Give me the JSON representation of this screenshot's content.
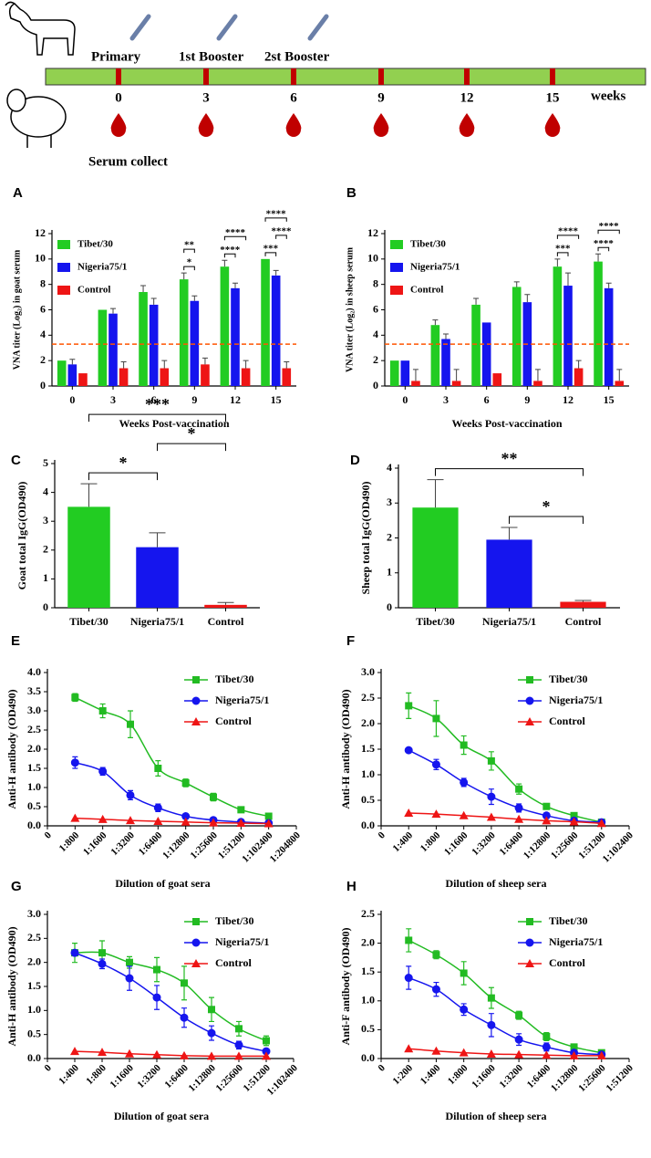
{
  "timeline": {
    "vaccinations": [
      "Primary",
      "1st Booster",
      "2st Booster"
    ],
    "weeks": [
      "0",
      "3",
      "6",
      "9",
      "12",
      "15"
    ],
    "unit": "weeks",
    "serum": "Serum collect"
  },
  "chart_data": [
    {
      "type": "bar",
      "panel": "A",
      "xlabel": "Weeks Post-vaccination",
      "ylabel": "VNA titer (Log₂) in goat serum",
      "categories": [
        "0",
        "3",
        "6",
        "9",
        "12",
        "15"
      ],
      "series": [
        {
          "name": "Tibet/30",
          "color": "#22cc22",
          "values": [
            2.0,
            6.0,
            7.4,
            8.4,
            9.4,
            10.0
          ],
          "errors": [
            0,
            0,
            0.5,
            0.5,
            0.5,
            0
          ]
        },
        {
          "name": "Nigeria75/1",
          "color": "#1515ee",
          "values": [
            1.7,
            5.7,
            6.4,
            6.7,
            7.7,
            8.7
          ],
          "errors": [
            0.4,
            0.4,
            0.5,
            0.4,
            0.4,
            0.4
          ]
        },
        {
          "name": "Control",
          "color": "#ee1515",
          "values": [
            1.0,
            1.4,
            1.4,
            1.7,
            1.4,
            1.4
          ],
          "errors": [
            0,
            0.5,
            0.6,
            0.5,
            0.6,
            0.5
          ]
        }
      ],
      "threshold": 3.3,
      "threshold_color": "#ff5500",
      "ylim": [
        0,
        12
      ],
      "yticks": [
        0,
        2,
        4,
        6,
        8,
        10,
        12
      ],
      "annotations": [
        {
          "text": "*",
          "category": "9",
          "bars": [
            "Tibet/30",
            "Nigeria75/1"
          ]
        },
        {
          "text": "**",
          "category": "9",
          "bars": [
            "Tibet/30",
            "Nigeria75/1"
          ]
        },
        {
          "text": "****",
          "category": "12",
          "bars": [
            "Tibet/30",
            "Nigeria75/1"
          ]
        },
        {
          "text": "****",
          "category": "12",
          "bars": [
            "Tibet/30",
            "Control"
          ]
        },
        {
          "text": "***",
          "category": "15",
          "bars": [
            "Tibet/30",
            "Nigeria75/1"
          ]
        },
        {
          "text": "****",
          "category": "15",
          "bars": [
            "Nigeria75/1",
            "Control"
          ]
        },
        {
          "text": "****",
          "category": "15",
          "bars": [
            "Tibet/30",
            "Control"
          ]
        }
      ]
    },
    {
      "type": "bar",
      "panel": "B",
      "xlabel": "Weeks Post-vaccination",
      "ylabel": "VNA titer (Log₂) in sheep serum",
      "categories": [
        "0",
        "3",
        "6",
        "9",
        "12",
        "15"
      ],
      "series": [
        {
          "name": "Tibet/30",
          "color": "#22cc22",
          "values": [
            2.0,
            4.8,
            6.4,
            7.8,
            9.4,
            9.8
          ],
          "errors": [
            0,
            0.4,
            0.5,
            0.4,
            0.6,
            0.6
          ]
        },
        {
          "name": "Nigeria75/1",
          "color": "#1515ee",
          "values": [
            2.0,
            3.7,
            5.0,
            6.6,
            7.9,
            7.7
          ],
          "errors": [
            0,
            0.4,
            0,
            0.6,
            1.0,
            0.4
          ]
        },
        {
          "name": "Control",
          "color": "#ee1515",
          "values": [
            0.4,
            0.4,
            1.0,
            0.4,
            1.4,
            0.4
          ],
          "errors": [
            0.9,
            0.9,
            0,
            0.9,
            0.6,
            0.9
          ]
        }
      ],
      "threshold": 3.3,
      "threshold_color": "#ff5500",
      "ylim": [
        0,
        12
      ],
      "yticks": [
        0,
        2,
        4,
        6,
        8,
        10,
        12
      ],
      "annotations": [
        {
          "text": "***",
          "category": "12",
          "bars": [
            "Tibet/30",
            "Nigeria75/1"
          ]
        },
        {
          "text": "****",
          "category": "12",
          "bars": [
            "Tibet/30",
            "Control"
          ]
        },
        {
          "text": "****",
          "category": "15",
          "bars": [
            "Tibet/30",
            "Nigeria75/1"
          ]
        },
        {
          "text": "****",
          "category": "15",
          "bars": [
            "Tibet/30",
            "Control"
          ]
        }
      ]
    },
    {
      "type": "bar",
      "panel": "C",
      "ylabel": "Goat total IgG(OD490)",
      "categories": [
        "Tibet/30",
        "Nigeria75/1",
        "Control"
      ],
      "values": [
        3.5,
        2.1,
        0.1
      ],
      "errors": [
        0.8,
        0.5,
        0.08
      ],
      "colors": [
        "#22cc22",
        "#1515ee",
        "#ee1515"
      ],
      "ylim": [
        0,
        5
      ],
      "yticks": [
        0,
        1,
        2,
        3,
        4,
        5
      ],
      "annotations": [
        {
          "text": "*",
          "bars": [
            "Tibet/30",
            "Nigeria75/1"
          ]
        },
        {
          "text": "*",
          "bars": [
            "Nigeria75/1",
            "Control"
          ]
        },
        {
          "text": "***",
          "bars": [
            "Tibet/30",
            "Control"
          ]
        }
      ]
    },
    {
      "type": "bar",
      "panel": "D",
      "ylabel": "Sheep total IgG(OD490)",
      "categories": [
        "Tibet/30",
        "Nigeria75/1",
        "Control"
      ],
      "values": [
        2.87,
        1.95,
        0.17
      ],
      "errors": [
        0.8,
        0.35,
        0.04
      ],
      "colors": [
        "#22cc22",
        "#1515ee",
        "#ee1515"
      ],
      "ylim": [
        0,
        4
      ],
      "yticks": [
        0,
        1,
        2,
        3,
        4
      ],
      "annotations": [
        {
          "text": "*",
          "bars": [
            "Nigeria75/1",
            "Control"
          ]
        },
        {
          "text": "**",
          "bars": [
            "Tibet/30",
            "Control"
          ]
        }
      ]
    },
    {
      "type": "line",
      "panel": "E",
      "xlabel": "Dilution of goat sera",
      "ylabel": "Anti-H antibody (OD490)",
      "categories": [
        "0",
        "1:800",
        "1:1600",
        "1:3200",
        "1:6400",
        "1:12800",
        "1:25600",
        "1:51200",
        "1:102400",
        "1:204800"
      ],
      "series": [
        {
          "name": "Tibet/30",
          "color": "#22bb22",
          "marker": "square",
          "values": [
            null,
            3.35,
            3.0,
            2.65,
            1.5,
            1.12,
            0.75,
            0.42,
            0.25,
            null
          ],
          "errors": [
            null,
            0.1,
            0.18,
            0.35,
            0.2,
            0.1,
            0.1,
            0.05,
            0.05,
            null
          ]
        },
        {
          "name": "Nigeria75/1",
          "color": "#1515ee",
          "marker": "circle",
          "values": [
            null,
            1.65,
            1.42,
            0.8,
            0.47,
            0.25,
            0.15,
            0.1,
            0.07,
            null
          ],
          "errors": [
            null,
            0.15,
            0.1,
            0.12,
            0.1,
            0.03,
            0.03,
            0.02,
            0.02,
            null
          ]
        },
        {
          "name": "Control",
          "color": "#ee1515",
          "marker": "triangle",
          "values": [
            null,
            0.2,
            0.17,
            0.14,
            0.12,
            0.1,
            0.08,
            0.07,
            0.06,
            null
          ]
        }
      ],
      "ylim": [
        0,
        4
      ],
      "yticks": [
        {
          "value": 0,
          "label": "0.0"
        },
        0.5,
        {
          "value": 1,
          "label": "1.0"
        },
        1.5,
        {
          "value": 2,
          "label": "2.0"
        },
        2.5,
        {
          "value": 3,
          "label": "3.0"
        },
        3.5,
        {
          "value": 4,
          "label": "4.0"
        }
      ]
    },
    {
      "type": "line",
      "panel": "F",
      "xlabel": "Dilution of sheep sera",
      "ylabel": "Anti-H antibody (OD490)",
      "categories": [
        "0",
        "1:400",
        "1:800",
        "1:1600",
        "1:3200",
        "1:6400",
        "1:12800",
        "1:25600",
        "1:51200",
        "1:102400"
      ],
      "series": [
        {
          "name": "Tibet/30",
          "color": "#22bb22",
          "marker": "square",
          "values": [
            null,
            2.35,
            2.1,
            1.58,
            1.27,
            0.72,
            0.38,
            0.2,
            0.07,
            null
          ],
          "errors": [
            null,
            0.25,
            0.35,
            0.18,
            0.18,
            0.1,
            0.05,
            0.05,
            0.02,
            null
          ]
        },
        {
          "name": "Nigeria75/1",
          "color": "#1515ee",
          "marker": "circle",
          "values": [
            null,
            1.48,
            1.2,
            0.85,
            0.57,
            0.35,
            0.2,
            0.1,
            0.07,
            null
          ],
          "errors": [
            null,
            0,
            0.1,
            0.08,
            0.15,
            0.08,
            0.05,
            0.02,
            0.02,
            null
          ]
        },
        {
          "name": "Control",
          "color": "#ee1515",
          "marker": "triangle",
          "values": [
            null,
            0.25,
            0.23,
            0.2,
            0.17,
            0.13,
            0.1,
            0.08,
            0.05,
            null
          ]
        }
      ],
      "ylim": [
        0,
        3
      ],
      "yticks": [
        {
          "value": 0,
          "label": "0.0"
        },
        0.5,
        {
          "value": 1,
          "label": "1.0"
        },
        1.5,
        {
          "value": 2,
          "label": "2.0"
        },
        2.5,
        {
          "value": 3,
          "label": "3.0"
        }
      ]
    },
    {
      "type": "line",
      "panel": "G",
      "xlabel": "Dilution of goat sera",
      "ylabel": "Anti-H antibody (OD490)",
      "categories": [
        "0",
        "1:400",
        "1:800",
        "1:1600",
        "1:3200",
        "1:6400",
        "1:12800",
        "1:25600",
        "1:51200",
        "1:102400"
      ],
      "series": [
        {
          "name": "Tibet/30",
          "color": "#22bb22",
          "marker": "square",
          "values": [
            null,
            2.2,
            2.2,
            2.0,
            1.85,
            1.57,
            1.02,
            0.62,
            0.37,
            null
          ],
          "errors": [
            null,
            0.2,
            0.25,
            0.12,
            0.25,
            0.35,
            0.25,
            0.15,
            0.1,
            null
          ]
        },
        {
          "name": "Nigeria75/1",
          "color": "#1515ee",
          "marker": "circle",
          "values": [
            null,
            2.2,
            1.97,
            1.67,
            1.27,
            0.85,
            0.53,
            0.28,
            0.15,
            null
          ],
          "errors": [
            null,
            0.05,
            0.1,
            0.25,
            0.25,
            0.2,
            0.15,
            0.08,
            0.05,
            null
          ]
        },
        {
          "name": "Control",
          "color": "#ee1515",
          "marker": "triangle",
          "values": [
            null,
            0.15,
            0.13,
            0.1,
            0.08,
            0.06,
            0.05,
            0.05,
            0.05,
            null
          ]
        }
      ],
      "ylim": [
        0,
        3
      ],
      "yticks": [
        {
          "value": 0,
          "label": "0.0"
        },
        0.5,
        {
          "value": 1,
          "label": "1.0"
        },
        1.5,
        {
          "value": 2,
          "label": "2.0"
        },
        2.5,
        {
          "value": 3,
          "label": "3.0"
        }
      ]
    },
    {
      "type": "line",
      "panel": "H",
      "xlabel": "Dilution of sheep sera",
      "ylabel": "Anti-F antibody (OD490)",
      "categories": [
        "0",
        "1:200",
        "1:400",
        "1:800",
        "1:1600",
        "1:3200",
        "1:6400",
        "1:12800",
        "1:25600",
        "1:51200"
      ],
      "series": [
        {
          "name": "Tibet/30",
          "color": "#22bb22",
          "marker": "square",
          "values": [
            null,
            2.05,
            1.8,
            1.48,
            1.05,
            0.75,
            0.38,
            0.2,
            0.1,
            null
          ],
          "errors": [
            null,
            0.2,
            0.07,
            0.2,
            0.18,
            0.07,
            0.07,
            0.05,
            0.03,
            null
          ]
        },
        {
          "name": "Nigeria75/1",
          "color": "#1515ee",
          "marker": "circle",
          "values": [
            null,
            1.4,
            1.2,
            0.85,
            0.58,
            0.33,
            0.2,
            0.1,
            0.07,
            null
          ],
          "errors": [
            null,
            0.2,
            0.12,
            0.1,
            0.2,
            0.1,
            0.07,
            0.03,
            0.02,
            null
          ]
        },
        {
          "name": "Control",
          "color": "#ee1515",
          "marker": "triangle",
          "values": [
            null,
            0.17,
            0.13,
            0.1,
            0.08,
            0.07,
            0.06,
            0.05,
            0.05,
            null
          ]
        }
      ],
      "ylim": [
        0,
        2.5
      ],
      "yticks": [
        {
          "value": 0,
          "label": "0.0"
        },
        0.5,
        {
          "value": 1,
          "label": "1.0"
        },
        1.5,
        {
          "value": 2,
          "label": "2.0"
        },
        2.5
      ]
    }
  ]
}
